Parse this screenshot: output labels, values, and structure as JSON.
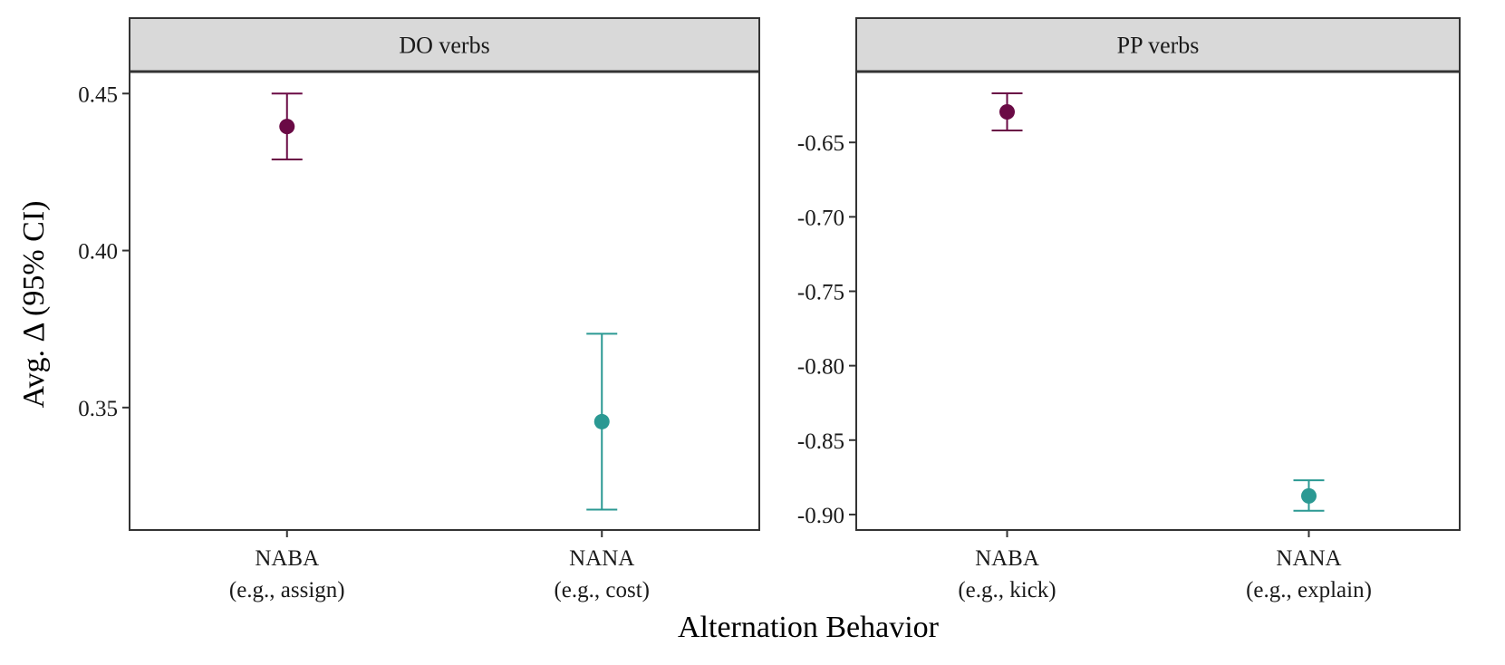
{
  "chart_data": {
    "type": "scatter",
    "xlabel": "Alternation Behavior",
    "ylabel": "Avg. Δ (95% CI)",
    "categories": [
      {
        "name": "NABA",
        "example": "(e.g., assign)"
      },
      {
        "name": "NANA",
        "example": "(e.g., cost)"
      }
    ],
    "colors": {
      "NABA": "#6a0a45",
      "NANA": "#2b9993"
    },
    "panels": [
      {
        "title": "DO verbs",
        "ylim": [
          0.311,
          0.457
        ],
        "yticks": [
          0.35,
          0.4,
          0.45
        ],
        "ytick_labels": [
          "0.35",
          "0.40",
          "0.45"
        ],
        "categories": [
          {
            "name": "NABA",
            "example": "(e.g., assign)"
          },
          {
            "name": "NANA",
            "example": "(e.g., cost)"
          }
        ],
        "points": [
          {
            "category": "NABA",
            "y": 0.4395,
            "ymin": 0.429,
            "ymax": 0.45
          },
          {
            "category": "NANA",
            "y": 0.3455,
            "ymin": 0.3175,
            "ymax": 0.3735
          }
        ]
      },
      {
        "title": "PP verbs",
        "ylim": [
          -0.9104,
          -0.6024
        ],
        "yticks": [
          -0.9,
          -0.85,
          -0.8,
          -0.75,
          -0.7,
          -0.65
        ],
        "ytick_labels": [
          "-0.90",
          "-0.85",
          "-0.80",
          "-0.75",
          "-0.70",
          "-0.65"
        ],
        "categories": [
          {
            "name": "NABA",
            "example": "(e.g., kick)"
          },
          {
            "name": "NANA",
            "example": "(e.g., explain)"
          }
        ],
        "points": [
          {
            "category": "NABA",
            "y": -0.6295,
            "ymin": -0.642,
            "ymax": -0.617
          },
          {
            "category": "NANA",
            "y": -0.8875,
            "ymin": -0.8975,
            "ymax": -0.877
          }
        ]
      }
    ]
  }
}
